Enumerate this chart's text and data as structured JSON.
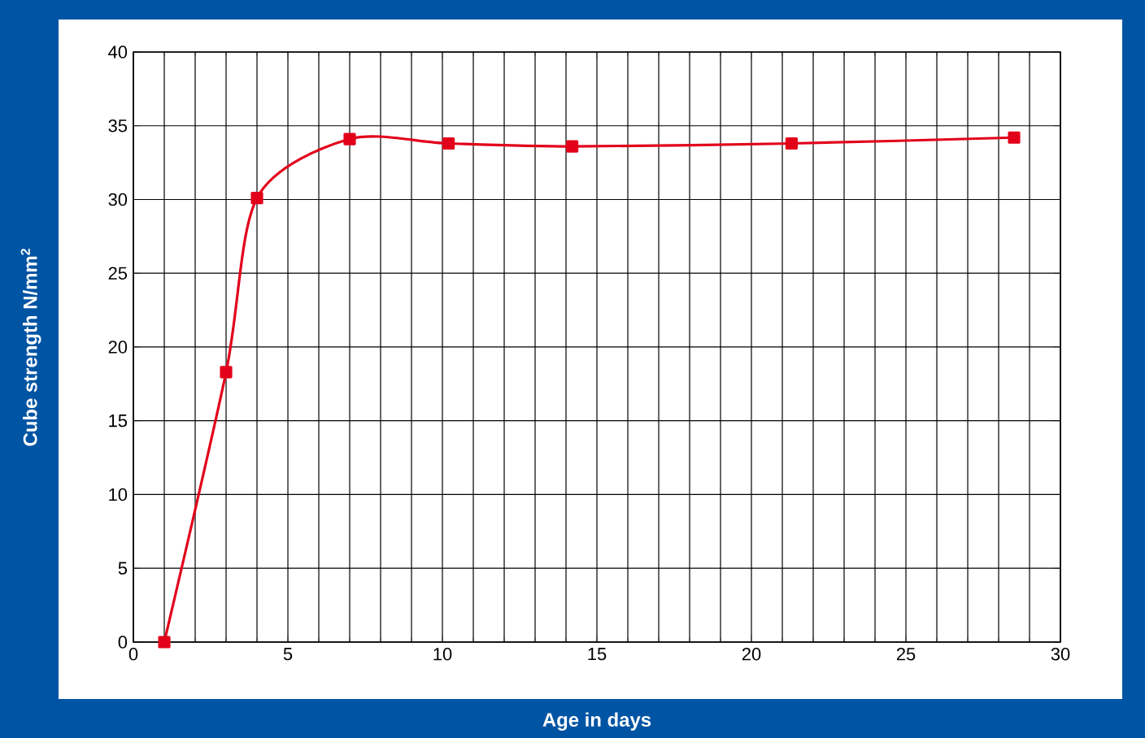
{
  "chart_data": {
    "type": "line",
    "xlabel": "Age in days",
    "ylabel": "Cube strength N/mm$^{2}$",
    "x": [
      1,
      3,
      4,
      7,
      10.2,
      14.2,
      21.3,
      28.5
    ],
    "series": [
      {
        "color": "#e2001a",
        "values": [
          0,
          18.3,
          30.1,
          34.1,
          33.8,
          33.6,
          33.8,
          34.2
        ]
      }
    ],
    "xlim": [
      0,
      30
    ],
    "xticks": [
      0,
      5,
      10,
      15,
      20,
      25,
      30
    ],
    "ylim": [
      0,
      40
    ],
    "yticks": [
      0,
      5,
      10,
      15,
      20,
      25,
      30,
      35,
      40
    ],
    "grid": true,
    "marker": "square",
    "line_style": "solid"
  }
}
